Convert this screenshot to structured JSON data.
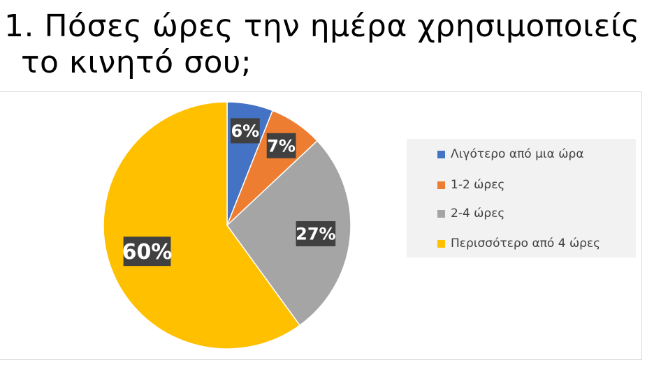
{
  "title": {
    "line1": "1. Πόσες ώρες την ημέρα χρησιμοποιείς",
    "line2": "το κινητό σου;"
  },
  "chart_data": {
    "type": "pie",
    "title": "",
    "categories": [
      "Λιγότερο από μια ώρα",
      "1-2 ώρες",
      "2-4 ώρες",
      "Περισσότερο από 4 ώρες"
    ],
    "values": [
      6,
      7,
      27,
      60
    ],
    "data_labels": [
      "6%",
      "7%",
      "27%",
      "60%"
    ],
    "colors": [
      "#4472C4",
      "#ED7D31",
      "#A5A5A5",
      "#FFC000"
    ],
    "legend_position": "right"
  }
}
